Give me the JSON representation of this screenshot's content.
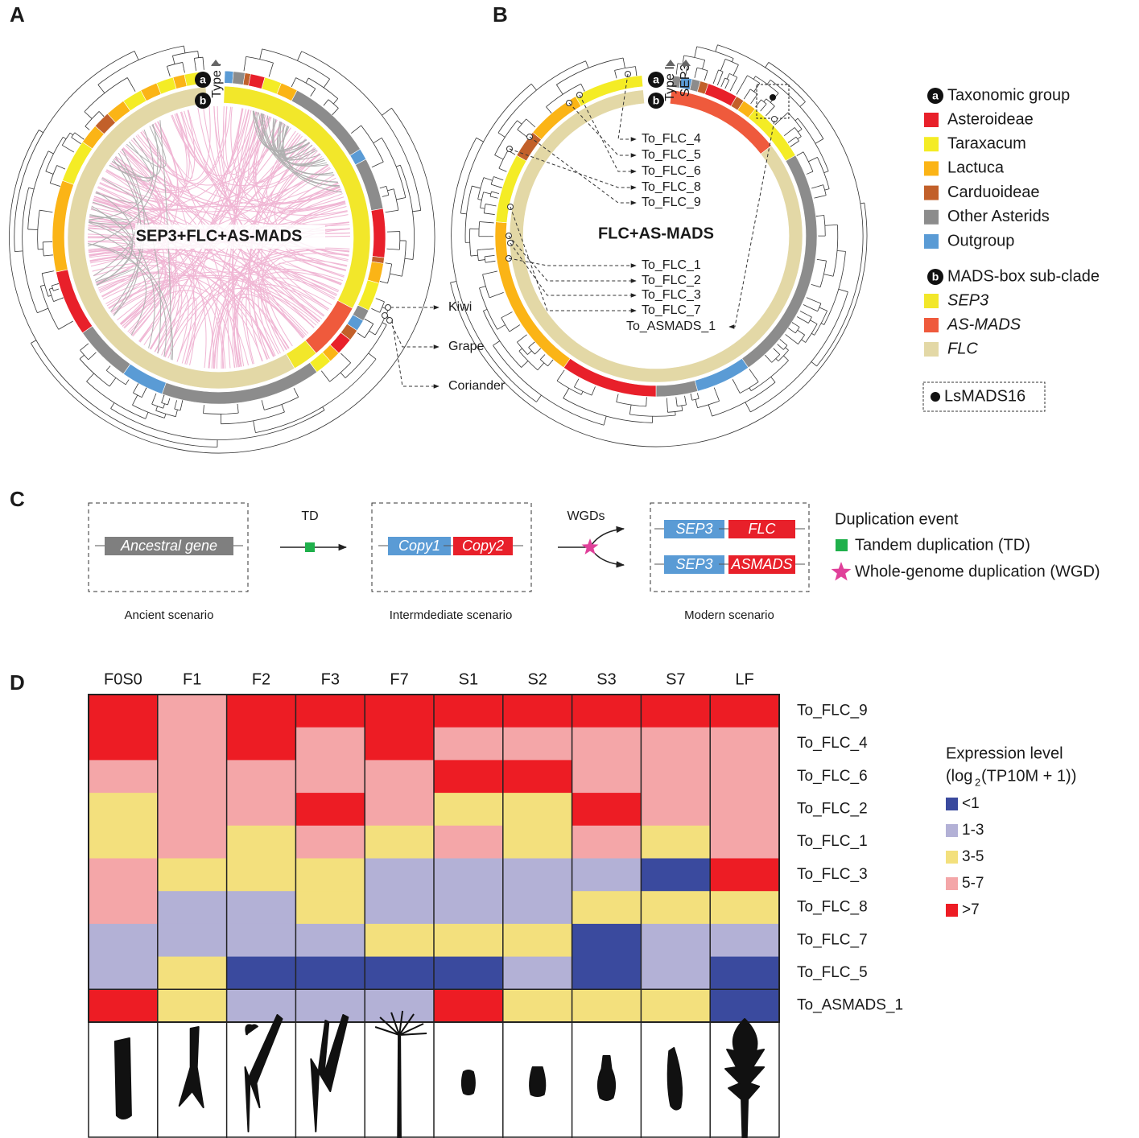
{
  "panels": {
    "a": "A",
    "b": "B",
    "c": "C",
    "d": "D"
  },
  "panel_a": {
    "title": "SEP3+FLC+AS-MADS",
    "ring_a": "a",
    "ring_b": "b",
    "clade": "Type I",
    "outgroups": [
      "Kiwi",
      "Grape",
      "Coriander"
    ]
  },
  "panel_b": {
    "title": "FLC+AS-MADS",
    "ring_a": "a",
    "ring_b": "b",
    "clades": [
      "Type I",
      "SEP3"
    ],
    "genes_upper": [
      "To_FLC_4",
      "To_FLC_5",
      "To_FLC_6",
      "To_FLC_8",
      "To_FLC_9"
    ],
    "genes_lower": [
      "To_FLC_1",
      "To_FLC_2",
      "To_FLC_3",
      "To_FLC_7",
      "To_ASMADS_1"
    ]
  },
  "legend": {
    "taxonomic": {
      "marker": "a",
      "title": "Taxonomic group",
      "items": [
        {
          "name": "Asteroideae",
          "color": "#e8202a"
        },
        {
          "name": "Taraxacum",
          "color": "#f4ec25"
        },
        {
          "name": "Lactuca",
          "color": "#fbb416"
        },
        {
          "name": "Carduoideae",
          "color": "#c2602a"
        },
        {
          "name": "Other Asterids",
          "color": "#8c8c8c"
        },
        {
          "name": "Outgroup",
          "color": "#5a9bd5"
        }
      ]
    },
    "subclade": {
      "marker": "b",
      "title": "MADS-box sub-clade",
      "items": [
        {
          "name": "SEP3",
          "color": "#f2e72a"
        },
        {
          "name": "AS-MADS",
          "color": "#ef5a3c"
        },
        {
          "name": "FLC",
          "color": "#e3d8a6"
        }
      ]
    },
    "highlight": "LsMADS16"
  },
  "panel_c": {
    "ancestral": "Ancestral gene",
    "td": "TD",
    "copies": [
      "Copy1",
      "Copy2"
    ],
    "wgds": "WGDs",
    "modern": [
      [
        "SEP3",
        "FLC"
      ],
      [
        "SEP3",
        "ASMADS"
      ]
    ],
    "captions": [
      "Ancient scenario",
      "Intermdediate scenario",
      "Modern scenario"
    ],
    "legend": {
      "title": "Duplication event",
      "items": [
        "Tandem duplication (TD)",
        "Whole-genome duplication (WGD)"
      ]
    }
  },
  "panel_d": {
    "columns": [
      "F0S0",
      "F1",
      "F2",
      "F3",
      "F7",
      "S1",
      "S2",
      "S3",
      "S7",
      "LF"
    ],
    "rows": [
      "To_FLC_9",
      "To_FLC_4",
      "To_FLC_6",
      "To_FLC_2",
      "To_FLC_1",
      "To_FLC_3",
      "To_FLC_8",
      "To_FLC_7",
      "To_FLC_5",
      "To_ASMADS_1"
    ],
    "cells": [
      [
        ">7",
        "5-7",
        ">7",
        ">7",
        ">7",
        ">7",
        ">7",
        ">7",
        ">7",
        ">7"
      ],
      [
        ">7",
        "5-7",
        ">7",
        "5-7",
        ">7",
        "5-7",
        "5-7",
        "5-7",
        "5-7",
        "5-7"
      ],
      [
        "5-7",
        "5-7",
        "5-7",
        "5-7",
        "5-7",
        ">7",
        ">7",
        "5-7",
        "5-7",
        "5-7"
      ],
      [
        "3-5",
        "5-7",
        "5-7",
        ">7",
        "5-7",
        "3-5",
        "3-5",
        ">7",
        "5-7",
        "5-7"
      ],
      [
        "3-5",
        "5-7",
        "3-5",
        "5-7",
        "3-5",
        "5-7",
        "3-5",
        "5-7",
        "3-5",
        "5-7"
      ],
      [
        "5-7",
        "3-5",
        "3-5",
        "3-5",
        "1-3",
        "1-3",
        "1-3",
        "1-3",
        "<1",
        ">7"
      ],
      [
        "5-7",
        "1-3",
        "1-3",
        "3-5",
        "1-3",
        "1-3",
        "1-3",
        "3-5",
        "3-5",
        "3-5"
      ],
      [
        "1-3",
        "1-3",
        "1-3",
        "1-3",
        "3-5",
        "3-5",
        "3-5",
        "<1",
        "1-3",
        "1-3"
      ],
      [
        "1-3",
        "3-5",
        "<1",
        "<1",
        "<1",
        "<1",
        "1-3",
        "<1",
        "1-3",
        "<1"
      ],
      [
        ">7",
        "3-5",
        "1-3",
        "1-3",
        "1-3",
        ">7",
        "3-5",
        "3-5",
        "3-5",
        "<1"
      ]
    ],
    "legend": {
      "title": "Expression level",
      "unit_prefix": "(log",
      "unit_sub": "2",
      "unit_suffix": "(TP10M + 1))",
      "levels": [
        {
          "label": "<1",
          "color": "#3a4a9e"
        },
        {
          "label": "1-3",
          "color": "#b3b1d6"
        },
        {
          "label": "3-5",
          "color": "#f3e07d"
        },
        {
          "label": "5-7",
          "color": "#f4a6a8"
        },
        {
          "label": ">7",
          "color": "#ed1c24"
        }
      ]
    }
  }
}
